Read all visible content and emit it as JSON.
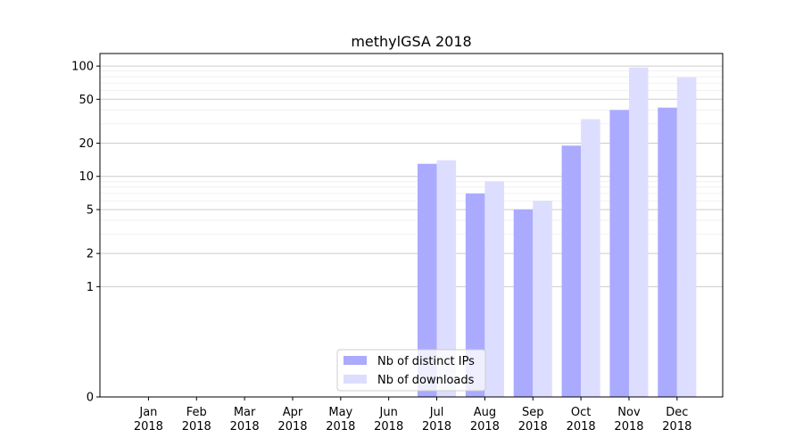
{
  "chart_data": {
    "type": "bar",
    "title": "methylGSA 2018",
    "xlabel": "",
    "ylabel": "",
    "y_scale": "symlog",
    "ylim": [
      0,
      130
    ],
    "y_ticks": [
      0,
      1,
      2,
      5,
      10,
      20,
      50,
      100
    ],
    "categories": [
      "Jan\n2018",
      "Feb\n2018",
      "Mar\n2018",
      "Apr\n2018",
      "May\n2018",
      "Jun\n2018",
      "Jul\n2018",
      "Aug\n2018",
      "Sep\n2018",
      "Oct\n2018",
      "Nov\n2018",
      "Dec\n2018"
    ],
    "series": [
      {
        "name": "Nb of distinct IPs",
        "color": "#aaaaff",
        "values": [
          0,
          0,
          0,
          0,
          0,
          0,
          13,
          7,
          5,
          19,
          40,
          42
        ]
      },
      {
        "name": "Nb of downloads",
        "color": "#ddddff",
        "values": [
          0,
          0,
          0,
          0,
          0,
          0,
          14,
          9,
          6,
          33,
          97,
          79
        ]
      }
    ],
    "grid": true,
    "legend_position": "bottom-center"
  }
}
